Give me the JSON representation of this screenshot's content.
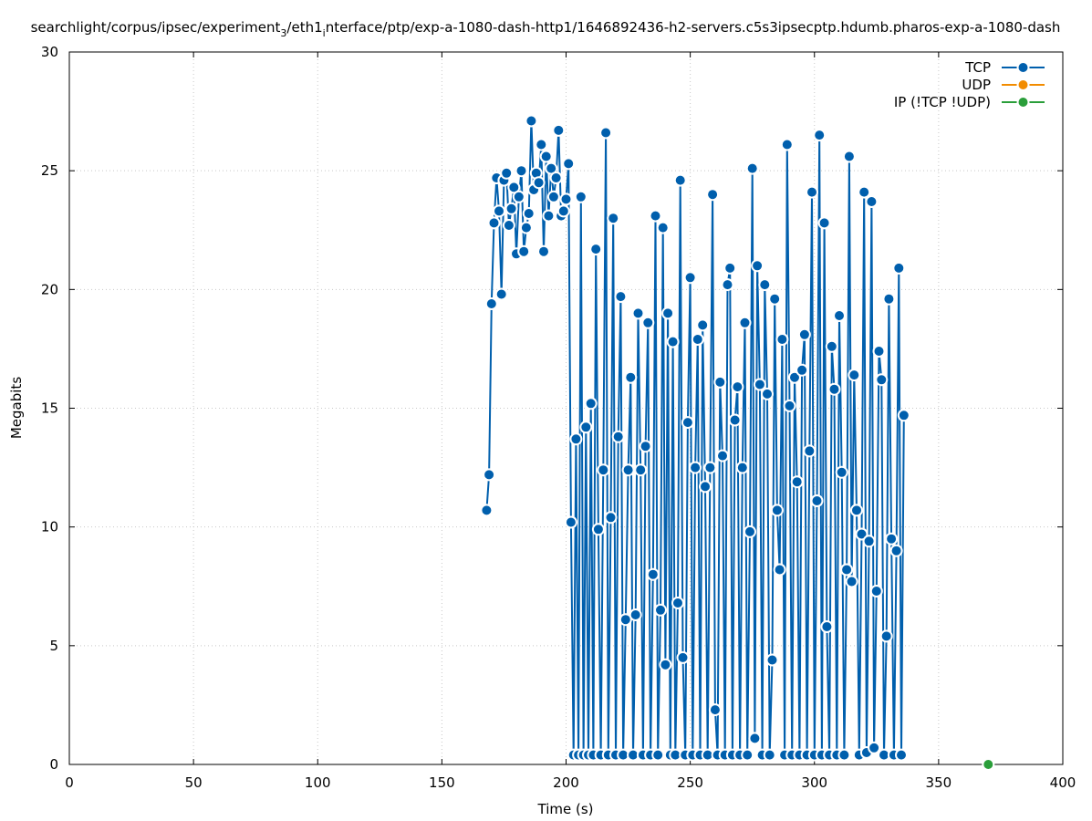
{
  "chart_data": {
    "type": "line",
    "title": "searchlight/corpus/ipsec/experiment_3/eth1_interface/ptp/exp-a-1080-dash-http1/1646892436-h2-servers.c5s3ipsecptp.hdumb.pharos-exp-a-1080-dash",
    "title_parts": {
      "a": "searchlight/corpus/ipsec/experiment",
      "sub1": "3",
      "b": "/eth1",
      "sub2": "i",
      "c": "nterface/ptp/exp-a-1080-dash-http1/1646892436-h2-servers.c5s3ipsecptp.hdumb.pharos-exp-a-1080-dash"
    },
    "xlabel": "Time (s)",
    "ylabel": "Megabits",
    "xlim": [
      0,
      400
    ],
    "ylim": [
      0,
      30
    ],
    "x_ticks": [
      0,
      50,
      100,
      150,
      200,
      250,
      300,
      350,
      400
    ],
    "y_ticks": [
      0,
      5,
      10,
      15,
      20,
      25,
      30
    ],
    "grid": true,
    "legend_position": "top-right",
    "series": [
      {
        "name": "TCP",
        "color": "#005fad",
        "points": [
          [
            168,
            10.7
          ],
          [
            169,
            12.2
          ],
          [
            170,
            19.4
          ],
          [
            171,
            22.8
          ],
          [
            172,
            24.7
          ],
          [
            173,
            23.3
          ],
          [
            174,
            19.8
          ],
          [
            175,
            24.6
          ],
          [
            176,
            24.9
          ],
          [
            177,
            22.7
          ],
          [
            178,
            23.4
          ],
          [
            179,
            24.3
          ],
          [
            180,
            21.5
          ],
          [
            181,
            23.9
          ],
          [
            182,
            25.0
          ],
          [
            183,
            21.6
          ],
          [
            184,
            22.6
          ],
          [
            185,
            23.2
          ],
          [
            186,
            27.1
          ],
          [
            187,
            24.2
          ],
          [
            188,
            24.9
          ],
          [
            189,
            24.5
          ],
          [
            190,
            26.1
          ],
          [
            191,
            21.6
          ],
          [
            192,
            25.6
          ],
          [
            193,
            23.1
          ],
          [
            194,
            25.1
          ],
          [
            195,
            23.9
          ],
          [
            196,
            24.7
          ],
          [
            197,
            26.7
          ],
          [
            198,
            23.1
          ],
          [
            199,
            23.3
          ],
          [
            200,
            23.8
          ],
          [
            201,
            25.3
          ],
          [
            202,
            10.2
          ],
          [
            203,
            0.4
          ],
          [
            204,
            13.7
          ],
          [
            205,
            0.4
          ],
          [
            206,
            23.9
          ],
          [
            207,
            0.4
          ],
          [
            208,
            14.2
          ],
          [
            209,
            0.4
          ],
          [
            210,
            15.2
          ],
          [
            211,
            0.4
          ],
          [
            212,
            21.7
          ],
          [
            213,
            9.9
          ],
          [
            214,
            0.4
          ],
          [
            215,
            12.4
          ],
          [
            216,
            26.6
          ],
          [
            217,
            0.4
          ],
          [
            218,
            10.4
          ],
          [
            219,
            23.0
          ],
          [
            220,
            0.4
          ],
          [
            221,
            13.8
          ],
          [
            222,
            19.7
          ],
          [
            223,
            0.4
          ],
          [
            224,
            6.1
          ],
          [
            225,
            12.4
          ],
          [
            226,
            16.3
          ],
          [
            227,
            0.4
          ],
          [
            228,
            6.3
          ],
          [
            229,
            19.0
          ],
          [
            230,
            12.4
          ],
          [
            231,
            0.4
          ],
          [
            232,
            13.4
          ],
          [
            233,
            18.6
          ],
          [
            234,
            0.4
          ],
          [
            235,
            8.0
          ],
          [
            236,
            23.1
          ],
          [
            237,
            0.4
          ],
          [
            238,
            6.5
          ],
          [
            239,
            22.6
          ],
          [
            240,
            4.2
          ],
          [
            241,
            19.0
          ],
          [
            242,
            0.4
          ],
          [
            243,
            17.8
          ],
          [
            244,
            0.4
          ],
          [
            245,
            6.8
          ],
          [
            246,
            24.6
          ],
          [
            247,
            4.5
          ],
          [
            248,
            0.4
          ],
          [
            249,
            14.4
          ],
          [
            250,
            20.5
          ],
          [
            251,
            0.4
          ],
          [
            252,
            12.5
          ],
          [
            253,
            17.9
          ],
          [
            254,
            0.4
          ],
          [
            255,
            18.5
          ],
          [
            256,
            11.7
          ],
          [
            257,
            0.4
          ],
          [
            258,
            12.5
          ],
          [
            259,
            24.0
          ],
          [
            260,
            2.3
          ],
          [
            261,
            0.4
          ],
          [
            262,
            16.1
          ],
          [
            263,
            13.0
          ],
          [
            264,
            0.4
          ],
          [
            265,
            20.2
          ],
          [
            266,
            20.9
          ],
          [
            267,
            0.4
          ],
          [
            268,
            14.5
          ],
          [
            269,
            15.9
          ],
          [
            270,
            0.4
          ],
          [
            271,
            12.5
          ],
          [
            272,
            18.6
          ],
          [
            273,
            0.4
          ],
          [
            274,
            9.8
          ],
          [
            275,
            25.1
          ],
          [
            276,
            1.1
          ],
          [
            277,
            21.0
          ],
          [
            278,
            16.0
          ],
          [
            279,
            0.4
          ],
          [
            280,
            20.2
          ],
          [
            281,
            15.6
          ],
          [
            282,
            0.4
          ],
          [
            283,
            4.4
          ],
          [
            284,
            19.6
          ],
          [
            285,
            10.7
          ],
          [
            286,
            8.2
          ],
          [
            287,
            17.9
          ],
          [
            288,
            0.4
          ],
          [
            289,
            26.1
          ],
          [
            290,
            15.1
          ],
          [
            291,
            0.4
          ],
          [
            292,
            16.3
          ],
          [
            293,
            11.9
          ],
          [
            294,
            0.4
          ],
          [
            295,
            16.6
          ],
          [
            296,
            18.1
          ],
          [
            297,
            0.4
          ],
          [
            298,
            13.2
          ],
          [
            299,
            24.1
          ],
          [
            300,
            0.4
          ],
          [
            301,
            11.1
          ],
          [
            302,
            26.5
          ],
          [
            303,
            0.4
          ],
          [
            304,
            22.8
          ],
          [
            305,
            5.8
          ],
          [
            306,
            0.4
          ],
          [
            307,
            17.6
          ],
          [
            308,
            15.8
          ],
          [
            309,
            0.4
          ],
          [
            310,
            18.9
          ],
          [
            311,
            12.3
          ],
          [
            312,
            0.4
          ],
          [
            313,
            8.2
          ],
          [
            314,
            25.6
          ],
          [
            315,
            7.7
          ],
          [
            316,
            16.4
          ],
          [
            317,
            10.7
          ],
          [
            318,
            0.4
          ],
          [
            319,
            9.7
          ],
          [
            320,
            24.1
          ],
          [
            321,
            0.5
          ],
          [
            322,
            9.4
          ],
          [
            323,
            23.7
          ],
          [
            324,
            0.7
          ],
          [
            325,
            7.3
          ],
          [
            326,
            17.4
          ],
          [
            327,
            16.2
          ],
          [
            328,
            0.4
          ],
          [
            329,
            5.4
          ],
          [
            330,
            19.6
          ],
          [
            331,
            9.5
          ],
          [
            332,
            0.4
          ],
          [
            333,
            9.0
          ],
          [
            334,
            20.9
          ],
          [
            335,
            0.4
          ],
          [
            336,
            14.7
          ]
        ]
      },
      {
        "name": "UDP",
        "color": "#f28c00",
        "points": []
      },
      {
        "name": "IP (!TCP  !UDP)",
        "color": "#2a9e3a",
        "points": [
          [
            370,
            0.0
          ]
        ]
      }
    ]
  }
}
